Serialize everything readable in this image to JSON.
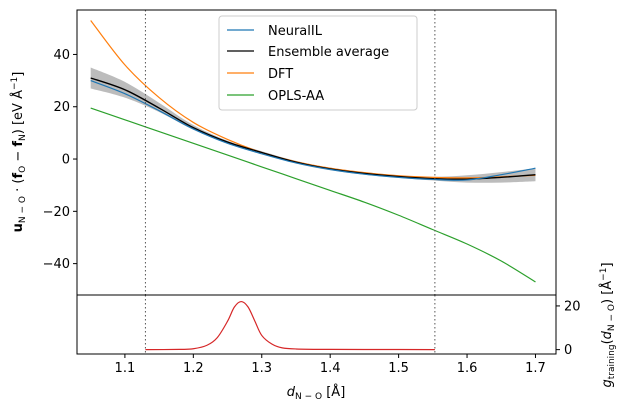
{
  "chart_data": [
    {
      "type": "line",
      "panel": "top",
      "xlabel": "d_N−O [Å]",
      "ylabel": "û_N−O · (f_O − f_N) [eV Å⁻¹]",
      "ylabel_parts": {
        "hat": "u",
        "sub1": "N − O",
        "dot": " · (",
        "f1": "f",
        "sub2": "O",
        "minus": " − ",
        "f2": "f",
        "sub3": "N",
        "unit": ") [eV Å",
        "sup": "−1",
        "close": "]"
      },
      "xlim": [
        1.03,
        1.73
      ],
      "ylim": [
        -52,
        57
      ],
      "yticks": [
        -40,
        -20,
        0,
        20,
        40
      ],
      "ytick_labels": [
        "−40",
        "−20",
        "0",
        "20",
        "40"
      ],
      "vlines": [
        1.13,
        1.553
      ],
      "legend_position": "upper center",
      "series": [
        {
          "name": "NeuralIL",
          "color": "#1f77b4",
          "x": [
            1.05,
            1.1,
            1.15,
            1.2,
            1.25,
            1.3,
            1.35,
            1.4,
            1.45,
            1.5,
            1.55,
            1.6,
            1.65,
            1.7
          ],
          "y": [
            30.0,
            25.0,
            18.5,
            11.5,
            6.0,
            2.0,
            -1.5,
            -4.0,
            -5.8,
            -7.0,
            -7.8,
            -8.0,
            -6.0,
            -3.5
          ]
        },
        {
          "name": "Ensemble average",
          "color": "#000000",
          "x": [
            1.05,
            1.1,
            1.15,
            1.2,
            1.25,
            1.3,
            1.35,
            1.4,
            1.45,
            1.5,
            1.55,
            1.6,
            1.65,
            1.7
          ],
          "y": [
            31.0,
            26.5,
            19.5,
            12.0,
            6.5,
            2.5,
            -1.2,
            -3.8,
            -5.5,
            -6.7,
            -7.5,
            -7.7,
            -7.0,
            -6.0
          ],
          "band_lower": [
            27.0,
            23.5,
            18.0,
            11.2,
            6.0,
            2.0,
            -1.7,
            -4.3,
            -6.0,
            -7.2,
            -8.2,
            -9.0,
            -9.0,
            -8.5
          ],
          "band_upper": [
            35.0,
            29.5,
            21.5,
            13.0,
            7.0,
            3.0,
            -0.7,
            -3.3,
            -5.0,
            -6.2,
            -6.8,
            -6.2,
            -5.0,
            -3.5
          ],
          "band_color": "#b0b0b0"
        },
        {
          "name": "DFT",
          "color": "#ff7f0e",
          "x": [
            1.05,
            1.1,
            1.15,
            1.2,
            1.25,
            1.3,
            1.35,
            1.4,
            1.45,
            1.5,
            1.55,
            1.6,
            1.65,
            1.7
          ],
          "y": [
            53.0,
            36.0,
            23.5,
            14.0,
            7.5,
            2.5,
            -1.0,
            -3.5,
            -5.2,
            -6.4,
            -7.0,
            -7.2,
            -6.8,
            -6.2
          ]
        },
        {
          "name": "OPLS-AA",
          "color": "#2ca02c",
          "x": [
            1.05,
            1.1,
            1.15,
            1.2,
            1.25,
            1.3,
            1.35,
            1.4,
            1.45,
            1.5,
            1.55,
            1.6,
            1.65,
            1.7
          ],
          "y": [
            19.5,
            15.0,
            10.5,
            6.0,
            1.5,
            -3.0,
            -7.5,
            -12.0,
            -16.5,
            -21.5,
            -27.0,
            -32.5,
            -39.0,
            -47.0
          ]
        }
      ]
    },
    {
      "type": "line",
      "panel": "bottom",
      "xlabel": "d_N−O [Å]",
      "ylabel": "g_training(d_N−O) [Å⁻¹]",
      "ylabel_parts": {
        "g": "g",
        "sub1": "training",
        "open": "(",
        "d": "d",
        "sub2": "N − O",
        "unit": ") [Å",
        "sup": "−1",
        "close": "]"
      },
      "xlim": [
        1.03,
        1.73
      ],
      "ylim": [
        -2,
        25
      ],
      "yticks": [
        0,
        20
      ],
      "ytick_labels": [
        "0",
        "20"
      ],
      "xticks": [
        1.1,
        1.2,
        1.3,
        1.4,
        1.5,
        1.6,
        1.7
      ],
      "xtick_labels": [
        "1.1",
        "1.2",
        "1.3",
        "1.4",
        "1.5",
        "1.6",
        "1.7"
      ],
      "vlines": [
        1.13,
        1.553
      ],
      "series": [
        {
          "name": "",
          "color": "#d62728",
          "x": [
            1.13,
            1.18,
            1.2,
            1.22,
            1.235,
            1.25,
            1.26,
            1.27,
            1.28,
            1.29,
            1.3,
            1.315,
            1.33,
            1.35,
            1.4,
            1.5,
            1.553
          ],
          "y": [
            0.0,
            0.1,
            0.4,
            2.0,
            5.5,
            13.0,
            19.5,
            22.0,
            19.5,
            13.0,
            6.5,
            2.5,
            0.8,
            0.3,
            0.1,
            0.05,
            0.0
          ]
        }
      ]
    }
  ]
}
